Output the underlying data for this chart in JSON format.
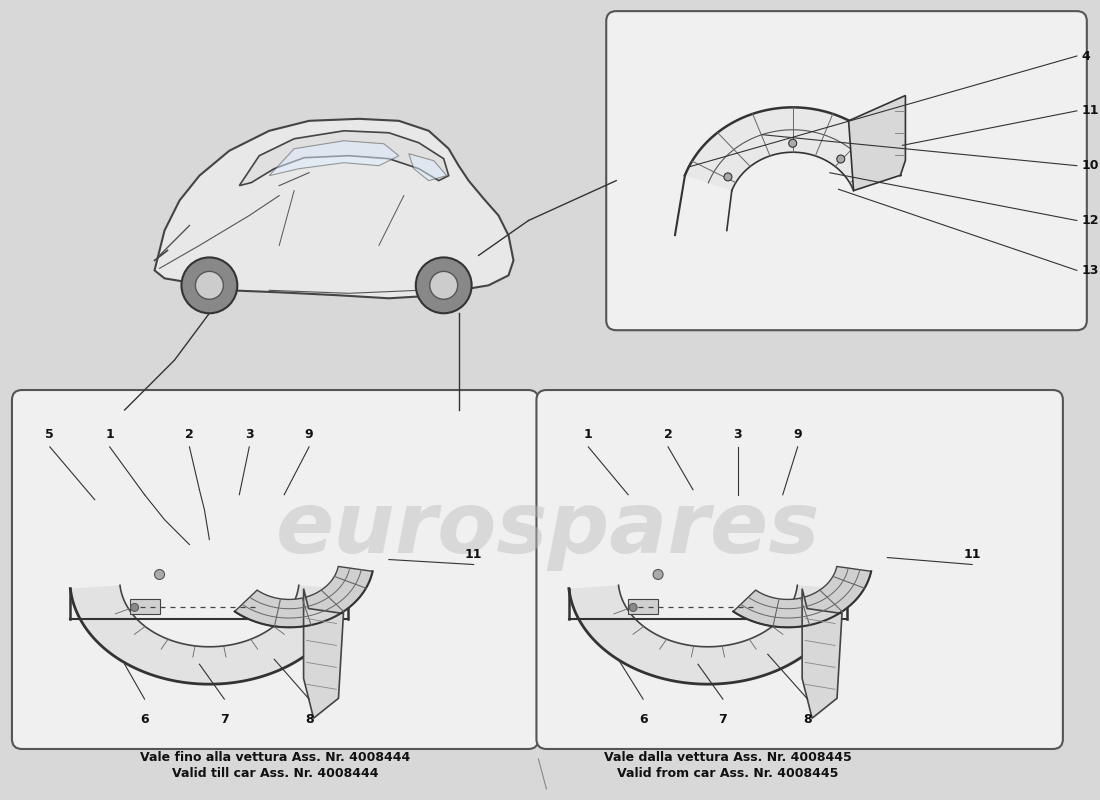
{
  "bg_color": "#d8d8d8",
  "box_fc": "#f0f0f0",
  "box_ec": "#555555",
  "line_color": "#333333",
  "text_color": "#111111",
  "watermark": "eurospares",
  "watermark_color": "#bbbbbb",
  "watermark_alpha": 0.45,
  "bottom_left_text1": "Vale fino alla vettura Ass. Nr. 4008444",
  "bottom_left_text2": "Valid till car Ass. Nr. 4008444",
  "bottom_right_text1": "Vale dalla vettura Ass. Nr. 4008445",
  "bottom_right_text2": "Valid from car Ass. Nr. 4008445",
  "arch_fc": "#e8e8e8",
  "arch_ec": "#333333",
  "arch_inner_fc": "#d0d0d0",
  "fender_fc": "#e0e0e0",
  "grid_fc": "#c8c8c8",
  "car_fc": "#e8e8e8",
  "car_ec": "#444444"
}
